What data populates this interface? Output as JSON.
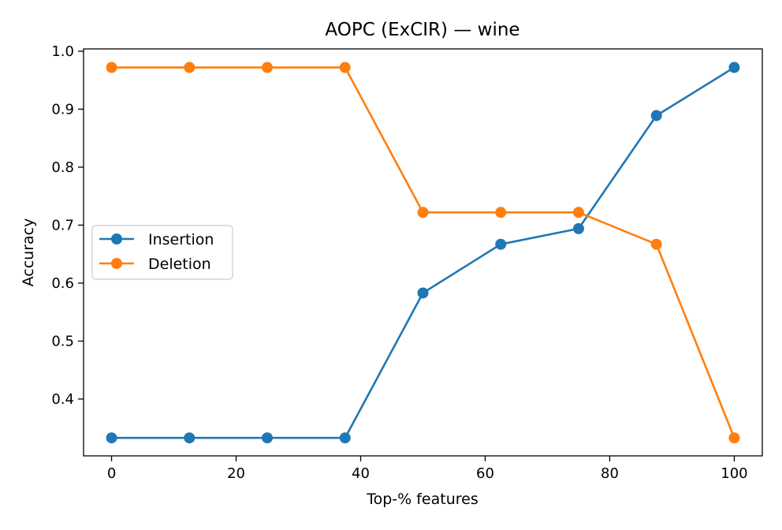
{
  "chart_data": {
    "type": "line",
    "title": "AOPC (ExCIR) — wine",
    "xlabel": "Top-% features",
    "ylabel": "Accuracy",
    "x": [
      0,
      12.5,
      25,
      37.5,
      50,
      62.5,
      75,
      87.5,
      100
    ],
    "xlim": [
      -4.5,
      104.5
    ],
    "ylim": [
      0.302,
      1.004
    ],
    "xticks": [
      0,
      20,
      40,
      60,
      80,
      100
    ],
    "yticks": [
      0.4,
      0.5,
      0.6,
      0.7,
      0.8,
      0.9,
      1.0
    ],
    "xtick_labels": [
      "0",
      "20",
      "40",
      "60",
      "80",
      "100"
    ],
    "ytick_labels": [
      "0.4",
      "0.5",
      "0.6",
      "0.7",
      "0.8",
      "0.9",
      "1.0"
    ],
    "grid": false,
    "legend_position": "center-left",
    "series": [
      {
        "name": "Insertion",
        "color": "#1f77b4",
        "values": [
          0.333,
          0.333,
          0.333,
          0.333,
          0.583,
          0.667,
          0.694,
          0.889,
          0.972
        ]
      },
      {
        "name": "Deletion",
        "color": "#ff7f0e",
        "values": [
          0.972,
          0.972,
          0.972,
          0.972,
          0.722,
          0.722,
          0.722,
          0.667,
          0.333
        ]
      }
    ]
  }
}
